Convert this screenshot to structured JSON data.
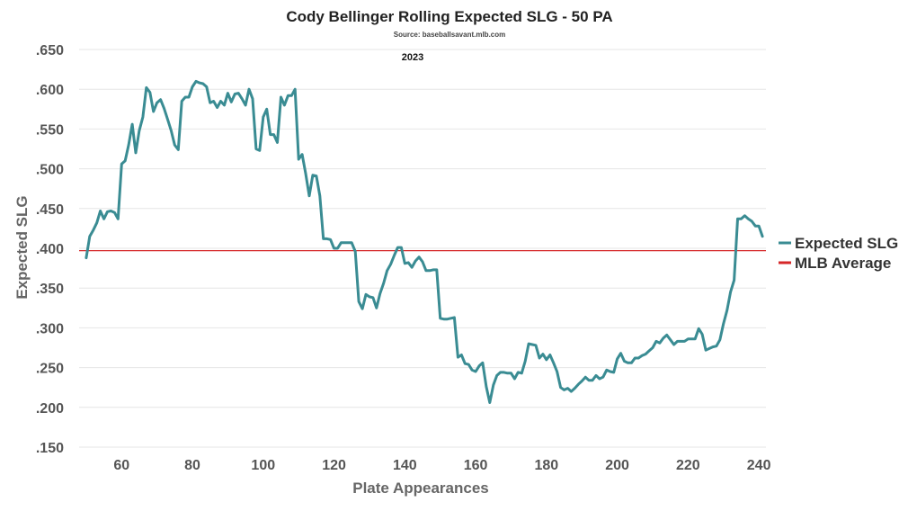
{
  "chart_data": {
    "type": "line",
    "title": "Cody Bellinger Rolling Expected SLG - 50 PA",
    "subtitle": "Source: baseballsavant.mlb.com",
    "annotation": "2023",
    "xlabel": "Plate Appearances",
    "ylabel": "Expected SLG",
    "xlim": [
      48,
      242
    ],
    "ylim": [
      0.15,
      0.65
    ],
    "x_ticks": [
      60,
      80,
      100,
      120,
      140,
      160,
      180,
      200,
      220,
      240
    ],
    "y_ticks": [
      0.15,
      0.2,
      0.25,
      0.3,
      0.35,
      0.4,
      0.45,
      0.5,
      0.55,
      0.6,
      0.65
    ],
    "y_tick_labels": [
      ".150",
      ".200",
      ".250",
      ".300",
      ".350",
      ".400",
      ".450",
      ".500",
      ".550",
      ".600",
      ".650"
    ],
    "grid": "horizontal",
    "legend_position": "right",
    "series": [
      {
        "name": "Expected SLG",
        "color": "#3a8c93",
        "points": [
          [
            50,
            0.388
          ],
          [
            51,
            0.415
          ],
          [
            52,
            0.423
          ],
          [
            53,
            0.432
          ],
          [
            54,
            0.447
          ],
          [
            55,
            0.437
          ],
          [
            56,
            0.446
          ],
          [
            57,
            0.447
          ],
          [
            58,
            0.445
          ],
          [
            59,
            0.437
          ],
          [
            60,
            0.506
          ],
          [
            61,
            0.51
          ],
          [
            62,
            0.53
          ],
          [
            63,
            0.556
          ],
          [
            64,
            0.52
          ],
          [
            65,
            0.548
          ],
          [
            66,
            0.565
          ],
          [
            67,
            0.602
          ],
          [
            68,
            0.596
          ],
          [
            69,
            0.572
          ],
          [
            70,
            0.583
          ],
          [
            71,
            0.587
          ],
          [
            72,
            0.576
          ],
          [
            73,
            0.562
          ],
          [
            74,
            0.548
          ],
          [
            75,
            0.53
          ],
          [
            76,
            0.524
          ],
          [
            77,
            0.585
          ],
          [
            78,
            0.59
          ],
          [
            79,
            0.59
          ],
          [
            80,
            0.603
          ],
          [
            81,
            0.61
          ],
          [
            82,
            0.608
          ],
          [
            83,
            0.607
          ],
          [
            84,
            0.603
          ],
          [
            85,
            0.583
          ],
          [
            86,
            0.585
          ],
          [
            87,
            0.577
          ],
          [
            88,
            0.585
          ],
          [
            89,
            0.58
          ],
          [
            90,
            0.595
          ],
          [
            91,
            0.584
          ],
          [
            92,
            0.594
          ],
          [
            93,
            0.595
          ],
          [
            94,
            0.588
          ],
          [
            95,
            0.58
          ],
          [
            96,
            0.6
          ],
          [
            97,
            0.588
          ],
          [
            98,
            0.525
          ],
          [
            99,
            0.523
          ],
          [
            100,
            0.565
          ],
          [
            101,
            0.575
          ],
          [
            102,
            0.543
          ],
          [
            103,
            0.543
          ],
          [
            104,
            0.533
          ],
          [
            105,
            0.59
          ],
          [
            106,
            0.58
          ],
          [
            107,
            0.592
          ],
          [
            108,
            0.592
          ],
          [
            109,
            0.6
          ],
          [
            110,
            0.512
          ],
          [
            111,
            0.518
          ],
          [
            112,
            0.494
          ],
          [
            113,
            0.466
          ],
          [
            114,
            0.492
          ],
          [
            115,
            0.491
          ],
          [
            116,
            0.466
          ],
          [
            117,
            0.412
          ],
          [
            118,
            0.412
          ],
          [
            119,
            0.411
          ],
          [
            120,
            0.4
          ],
          [
            121,
            0.4
          ],
          [
            122,
            0.407
          ],
          [
            123,
            0.407
          ],
          [
            124,
            0.407
          ],
          [
            125,
            0.407
          ],
          [
            126,
            0.396
          ],
          [
            127,
            0.333
          ],
          [
            128,
            0.324
          ],
          [
            129,
            0.342
          ],
          [
            130,
            0.339
          ],
          [
            131,
            0.338
          ],
          [
            132,
            0.325
          ],
          [
            133,
            0.343
          ],
          [
            134,
            0.356
          ],
          [
            135,
            0.372
          ],
          [
            136,
            0.38
          ],
          [
            137,
            0.391
          ],
          [
            138,
            0.401
          ],
          [
            139,
            0.401
          ],
          [
            140,
            0.381
          ],
          [
            141,
            0.382
          ],
          [
            142,
            0.376
          ],
          [
            143,
            0.384
          ],
          [
            144,
            0.389
          ],
          [
            145,
            0.383
          ],
          [
            146,
            0.372
          ],
          [
            147,
            0.372
          ],
          [
            148,
            0.373
          ],
          [
            149,
            0.373
          ],
          [
            150,
            0.312
          ],
          [
            151,
            0.311
          ],
          [
            152,
            0.311
          ],
          [
            153,
            0.312
          ],
          [
            154,
            0.313
          ],
          [
            155,
            0.263
          ],
          [
            156,
            0.266
          ],
          [
            157,
            0.255
          ],
          [
            158,
            0.254
          ],
          [
            159,
            0.247
          ],
          [
            160,
            0.245
          ],
          [
            161,
            0.252
          ],
          [
            162,
            0.256
          ],
          [
            163,
            0.226
          ],
          [
            164,
            0.206
          ],
          [
            165,
            0.228
          ],
          [
            166,
            0.24
          ],
          [
            167,
            0.244
          ],
          [
            168,
            0.244
          ],
          [
            169,
            0.243
          ],
          [
            170,
            0.243
          ],
          [
            171,
            0.236
          ],
          [
            172,
            0.244
          ],
          [
            173,
            0.243
          ],
          [
            174,
            0.258
          ],
          [
            175,
            0.28
          ],
          [
            176,
            0.279
          ],
          [
            177,
            0.278
          ],
          [
            178,
            0.262
          ],
          [
            179,
            0.267
          ],
          [
            180,
            0.26
          ],
          [
            181,
            0.266
          ],
          [
            182,
            0.256
          ],
          [
            183,
            0.245
          ],
          [
            184,
            0.225
          ],
          [
            185,
            0.222
          ],
          [
            186,
            0.224
          ],
          [
            187,
            0.22
          ],
          [
            188,
            0.224
          ],
          [
            189,
            0.229
          ],
          [
            190,
            0.233
          ],
          [
            191,
            0.238
          ],
          [
            192,
            0.234
          ],
          [
            193,
            0.234
          ],
          [
            194,
            0.24
          ],
          [
            195,
            0.236
          ],
          [
            196,
            0.238
          ],
          [
            197,
            0.247
          ],
          [
            198,
            0.245
          ],
          [
            199,
            0.244
          ],
          [
            200,
            0.261
          ],
          [
            201,
            0.268
          ],
          [
            202,
            0.258
          ],
          [
            203,
            0.256
          ],
          [
            204,
            0.256
          ],
          [
            205,
            0.262
          ],
          [
            206,
            0.262
          ],
          [
            207,
            0.265
          ],
          [
            208,
            0.267
          ],
          [
            209,
            0.271
          ],
          [
            210,
            0.275
          ],
          [
            211,
            0.283
          ],
          [
            212,
            0.281
          ],
          [
            213,
            0.287
          ],
          [
            214,
            0.291
          ],
          [
            215,
            0.285
          ],
          [
            216,
            0.279
          ],
          [
            217,
            0.283
          ],
          [
            218,
            0.283
          ],
          [
            219,
            0.283
          ],
          [
            220,
            0.286
          ],
          [
            221,
            0.286
          ],
          [
            222,
            0.286
          ],
          [
            223,
            0.299
          ],
          [
            224,
            0.292
          ],
          [
            225,
            0.272
          ],
          [
            226,
            0.274
          ],
          [
            227,
            0.276
          ],
          [
            228,
            0.277
          ],
          [
            229,
            0.285
          ],
          [
            230,
            0.305
          ],
          [
            231,
            0.322
          ],
          [
            232,
            0.345
          ],
          [
            233,
            0.36
          ],
          [
            234,
            0.437
          ],
          [
            235,
            0.437
          ],
          [
            236,
            0.441
          ],
          [
            237,
            0.437
          ],
          [
            238,
            0.434
          ],
          [
            239,
            0.428
          ],
          [
            240,
            0.428
          ],
          [
            241,
            0.415
          ]
        ]
      },
      {
        "name": "MLB Average",
        "color": "#d62728",
        "style": "reference-line",
        "value": 0.397
      }
    ]
  }
}
